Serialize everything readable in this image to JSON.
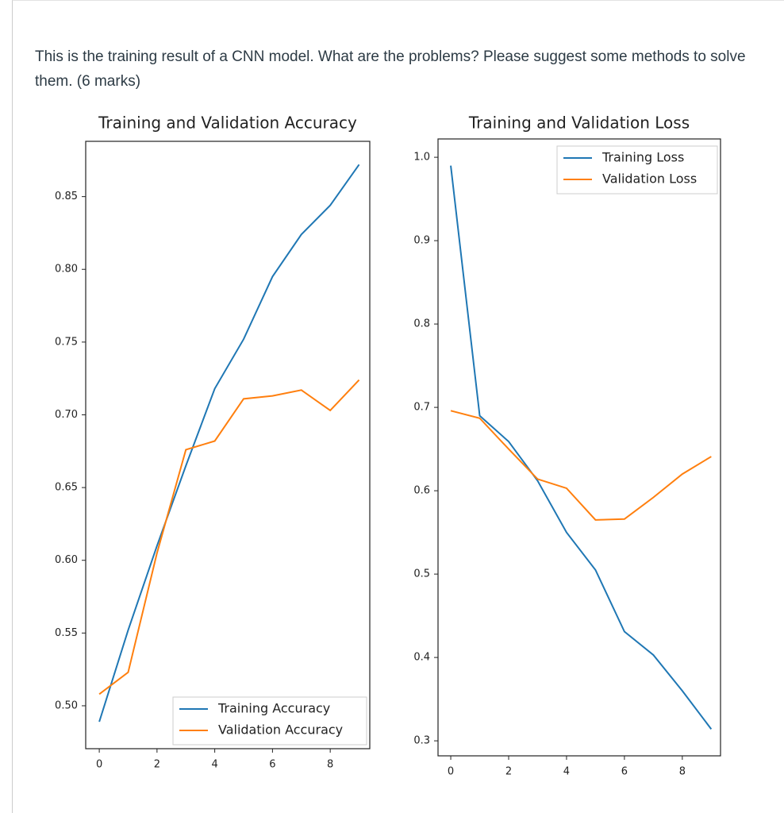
{
  "question": "This is the training result of a CNN model. What are the problems? Please suggest some methods to solve them. (6 marks)",
  "chart_data": [
    {
      "type": "line",
      "title": "Training and Validation Accuracy",
      "x": [
        0,
        1,
        2,
        3,
        4,
        5,
        6,
        7,
        8,
        9
      ],
      "series": [
        {
          "name": "Training Accuracy",
          "color": "#1f77b4",
          "values": [
            0.489,
            0.552,
            0.61,
            0.665,
            0.718,
            0.752,
            0.795,
            0.824,
            0.844,
            0.872
          ]
        },
        {
          "name": "Validation Accuracy",
          "color": "#ff7f0e",
          "values": [
            0.508,
            0.523,
            0.605,
            0.676,
            0.682,
            0.711,
            0.713,
            0.717,
            0.703,
            0.724
          ]
        }
      ],
      "xlim": [
        -0.47,
        9.37
      ],
      "ylim": [
        0.4705,
        0.888
      ],
      "xticks": [
        0,
        2,
        4,
        6,
        8
      ],
      "yticks": [
        {
          "value": 0.5,
          "label": "0.50"
        },
        0.55,
        {
          "value": 0.6,
          "label": "0.60"
        },
        0.65,
        {
          "value": 0.7,
          "label": "0.70"
        },
        0.75,
        {
          "value": 0.8,
          "label": "0.80"
        },
        0.85
      ],
      "legend": "lower right"
    },
    {
      "type": "line",
      "title": "Training and Validation Loss",
      "x": [
        0,
        1,
        2,
        3,
        4,
        5,
        6,
        7,
        8,
        9
      ],
      "series": [
        {
          "name": "Training Loss",
          "color": "#1f77b4",
          "values": [
            0.99,
            0.69,
            0.659,
            0.612,
            0.55,
            0.505,
            0.431,
            0.403,
            0.36,
            0.314
          ]
        },
        {
          "name": "Validation Loss",
          "color": "#ff7f0e",
          "values": [
            0.696,
            0.687,
            0.65,
            0.614,
            0.603,
            0.565,
            0.566,
            0.592,
            0.62,
            0.641
          ]
        }
      ],
      "xlim": [
        -0.44,
        9.32
      ],
      "ylim": [
        0.282,
        1.022
      ],
      "xticks": [
        0,
        2,
        4,
        6,
        8
      ],
      "yticks": [
        0.3,
        0.4,
        0.5,
        0.6,
        0.7,
        0.8,
        0.9,
        {
          "value": 1,
          "label": "1.0"
        }
      ],
      "legend": "upper right"
    }
  ]
}
